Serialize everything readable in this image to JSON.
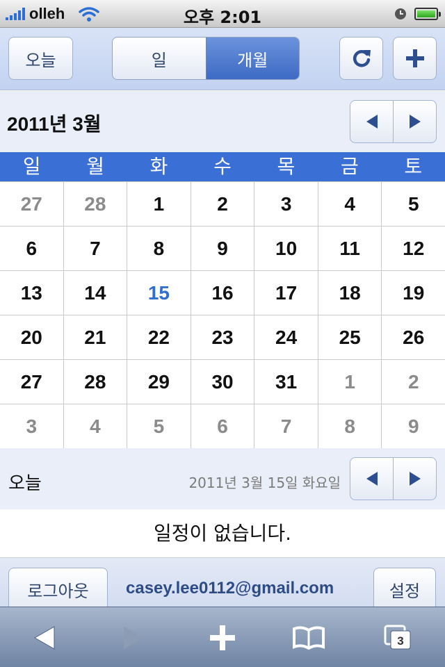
{
  "status": {
    "carrier": "olleh",
    "time": "오후 2:01"
  },
  "toolbar": {
    "today_label": "오늘",
    "segments": [
      {
        "label": "일",
        "selected": false
      },
      {
        "label": "개월",
        "selected": true
      }
    ],
    "refresh_icon": "refresh-icon",
    "add_icon": "plus-icon"
  },
  "month": {
    "title": "2011년 3월"
  },
  "weekdays": [
    "일",
    "월",
    "화",
    "수",
    "목",
    "금",
    "토"
  ],
  "calendar": {
    "weeks": [
      [
        {
          "d": "27",
          "o": true
        },
        {
          "d": "28",
          "o": true
        },
        {
          "d": "1"
        },
        {
          "d": "2"
        },
        {
          "d": "3"
        },
        {
          "d": "4"
        },
        {
          "d": "5"
        }
      ],
      [
        {
          "d": "6"
        },
        {
          "d": "7"
        },
        {
          "d": "8"
        },
        {
          "d": "9"
        },
        {
          "d": "10"
        },
        {
          "d": "11"
        },
        {
          "d": "12"
        }
      ],
      [
        {
          "d": "13"
        },
        {
          "d": "14"
        },
        {
          "d": "15",
          "today": true
        },
        {
          "d": "16"
        },
        {
          "d": "17"
        },
        {
          "d": "18"
        },
        {
          "d": "19"
        }
      ],
      [
        {
          "d": "20"
        },
        {
          "d": "21"
        },
        {
          "d": "22"
        },
        {
          "d": "23"
        },
        {
          "d": "24"
        },
        {
          "d": "25"
        },
        {
          "d": "26"
        }
      ],
      [
        {
          "d": "27"
        },
        {
          "d": "28"
        },
        {
          "d": "29"
        },
        {
          "d": "30"
        },
        {
          "d": "31"
        },
        {
          "d": "1",
          "o": true
        },
        {
          "d": "2",
          "o": true
        }
      ],
      [
        {
          "d": "3",
          "o": true
        },
        {
          "d": "4",
          "o": true
        },
        {
          "d": "5",
          "o": true
        },
        {
          "d": "6",
          "o": true
        },
        {
          "d": "7",
          "o": true
        },
        {
          "d": "8",
          "o": true
        },
        {
          "d": "9",
          "o": true
        }
      ]
    ]
  },
  "day": {
    "label": "오늘",
    "date": "2011년 3월 15일 화요일",
    "empty_message": "일정이 없습니다."
  },
  "footer": {
    "logout_label": "로그아웃",
    "email": "casey.lee0112@gmail.com",
    "settings_label": "설정"
  },
  "safari": {
    "tabs_count": "3"
  },
  "colors": {
    "accent": "#3a6fd5",
    "today": "#2f6fcf",
    "other_month": "#8b8b8b"
  }
}
